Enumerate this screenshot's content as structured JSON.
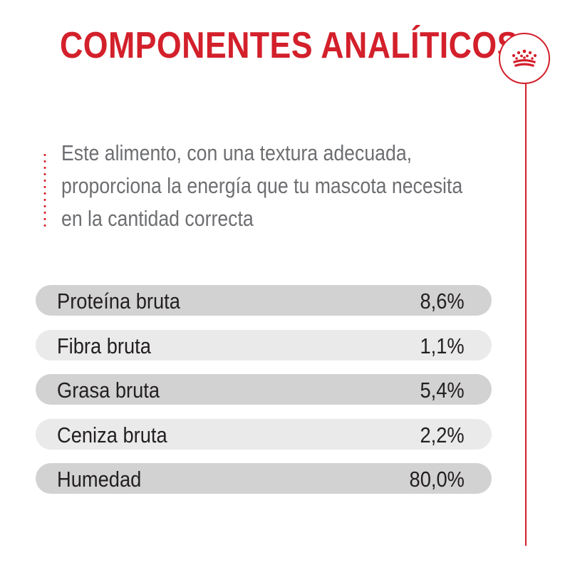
{
  "header": {
    "title": "COMPONENTES ANALÍTICOS",
    "logo_icon": "crown-icon",
    "accent_color": "#d3202b"
  },
  "intro": {
    "lines": [
      "Este alimento, con una textura adecuada,",
      "proporciona la energía que tu mascota necesita",
      "en la cantidad correcta"
    ]
  },
  "components": [
    {
      "label": "Proteína bruta",
      "value": "8,6%"
    },
    {
      "label": "Fibra bruta",
      "value": "1,1%"
    },
    {
      "label": "Grasa bruta",
      "value": "5,4%"
    },
    {
      "label": "Ceniza bruta",
      "value": "2,2%"
    },
    {
      "label": "Humedad",
      "value": "80,0%"
    }
  ]
}
